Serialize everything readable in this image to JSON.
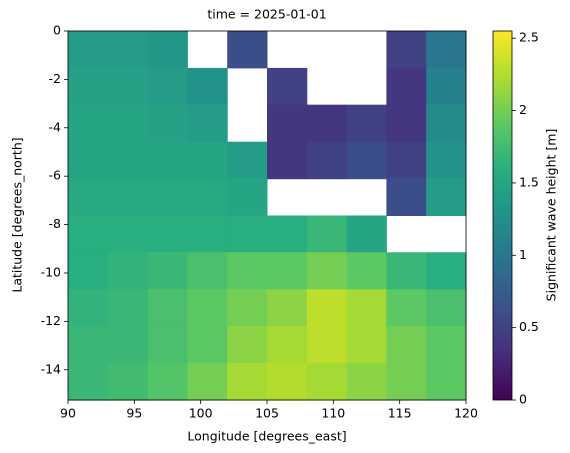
{
  "chart_data": {
    "type": "heatmap",
    "title": "time = 2025-01-01",
    "x_label": "Longitude [degrees_east]",
    "y_label": "Latitude [degrees_north]",
    "colorbar_label": "Significant wave height [m]",
    "colormap": "viridis",
    "x": [
      91.5,
      94.5,
      97.5,
      100.5,
      103.5,
      106.5,
      109.5,
      112.5,
      115.5,
      118.5
    ],
    "y": [
      -0.76,
      -2.29,
      -3.81,
      -5.34,
      -6.86,
      -8.39,
      -9.91,
      -11.44,
      -12.96,
      -14.49
    ],
    "z": [
      [
        1.4,
        1.4,
        1.35,
        null,
        0.6,
        null,
        null,
        null,
        0.5,
        1.0
      ],
      [
        1.45,
        1.45,
        1.4,
        1.3,
        null,
        0.5,
        null,
        null,
        0.4,
        1.1
      ],
      [
        1.5,
        1.5,
        1.45,
        1.4,
        null,
        0.4,
        0.4,
        0.5,
        0.4,
        1.2
      ],
      [
        1.5,
        1.5,
        1.5,
        1.5,
        1.4,
        0.4,
        0.5,
        0.6,
        0.5,
        1.3
      ],
      [
        1.55,
        1.55,
        1.55,
        1.55,
        1.5,
        null,
        null,
        null,
        0.6,
        1.4
      ],
      [
        1.6,
        1.6,
        1.6,
        1.6,
        1.6,
        1.6,
        1.7,
        1.5,
        null,
        null
      ],
      [
        1.6,
        1.65,
        1.7,
        1.8,
        1.9,
        1.9,
        2.0,
        1.9,
        1.7,
        1.6
      ],
      [
        1.65,
        1.7,
        1.8,
        1.9,
        2.0,
        2.1,
        2.3,
        2.2,
        1.9,
        1.8
      ],
      [
        1.7,
        1.7,
        1.8,
        1.9,
        2.1,
        2.2,
        2.3,
        2.2,
        2.0,
        1.9
      ],
      [
        1.7,
        1.75,
        1.85,
        2.0,
        2.2,
        2.25,
        2.2,
        2.1,
        2.0,
        1.9
      ]
    ],
    "xlim": [
      90,
      120
    ],
    "xticks": [
      90,
      95,
      100,
      105,
      110,
      115,
      120
    ],
    "ylim": [
      -15.25,
      0
    ],
    "yticks": [
      0,
      -2,
      -4,
      -6,
      -8,
      -10,
      -12,
      -14
    ],
    "zlim": [
      0,
      2.55
    ],
    "zticks": [
      0,
      0.5,
      1.0,
      1.5,
      2.0,
      2.5
    ]
  }
}
